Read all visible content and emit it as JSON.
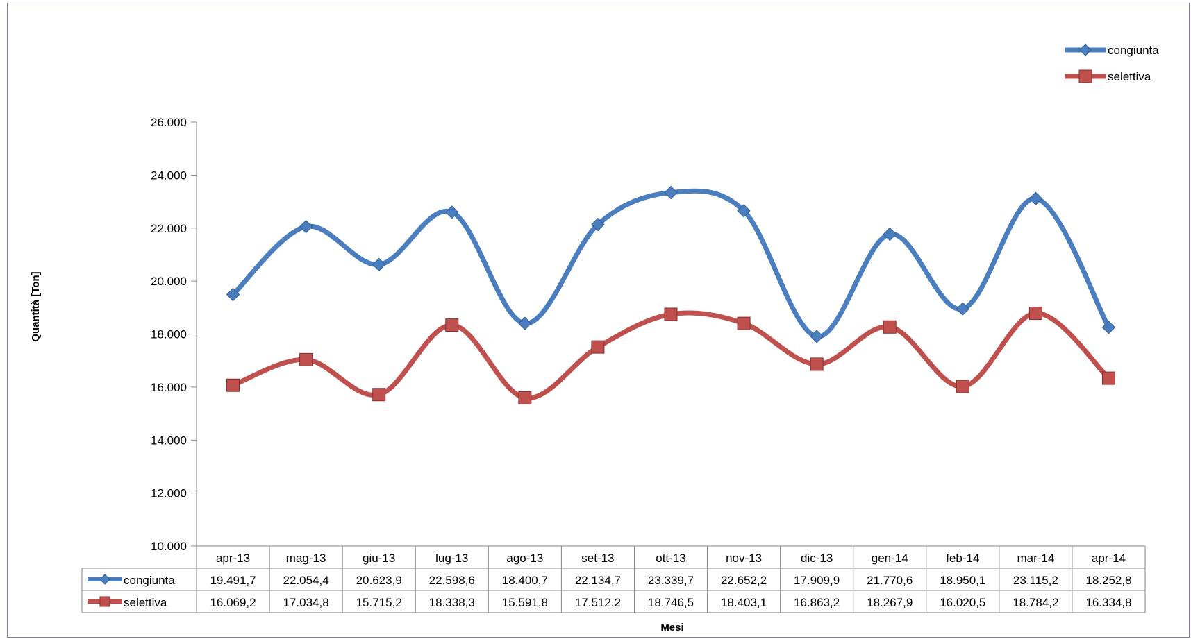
{
  "chart_data": {
    "type": "line",
    "title": "",
    "xlabel": "Mesi",
    "ylabel": "Quantità [Ton]",
    "ylim": [
      10000,
      26000
    ],
    "ytick_values": [
      10000,
      12000,
      14000,
      16000,
      18000,
      20000,
      22000,
      24000,
      26000
    ],
    "ytick_labels": [
      "10.000",
      "12.000",
      "14.000",
      "16.000",
      "18.000",
      "20.000",
      "22.000",
      "24.000",
      "26.000"
    ],
    "categories": [
      "apr-13",
      "mag-13",
      "giu-13",
      "lug-13",
      "ago-13",
      "set-13",
      "ott-13",
      "nov-13",
      "dic-13",
      "gen-14",
      "feb-14",
      "mar-14",
      "apr-14"
    ],
    "series": [
      {
        "name": "congiunta",
        "color": "#4a7ebf",
        "marker": "diamond",
        "values": [
          19491.7,
          22054.4,
          20623.9,
          22598.6,
          18400.7,
          22134.7,
          23339.7,
          22652.2,
          17909.9,
          21770.6,
          18950.1,
          23115.2,
          18252.8
        ],
        "labels": [
          "19.491,7",
          "22.054,4",
          "20.623,9",
          "22.598,6",
          "18.400,7",
          "22.134,7",
          "23.339,7",
          "22.652,2",
          "17.909,9",
          "21.770,6",
          "18.950,1",
          "23.115,2",
          "18.252,8"
        ]
      },
      {
        "name": "selettiva",
        "color": "#c0504d",
        "marker": "square",
        "values": [
          16069.2,
          17034.8,
          15715.2,
          18338.3,
          15591.8,
          17512.2,
          18746.5,
          18403.1,
          16863.2,
          18267.9,
          16020.5,
          18784.2,
          16334.8
        ],
        "labels": [
          "16.069,2",
          "17.034,8",
          "15.715,2",
          "18.338,3",
          "15.591,8",
          "17.512,2",
          "18.746,5",
          "18.403,1",
          "16.863,2",
          "18.267,9",
          "16.020,5",
          "18.784,2",
          "16.334,8"
        ]
      }
    ],
    "legend_position": "top-right",
    "grid": false,
    "data_table": true
  }
}
